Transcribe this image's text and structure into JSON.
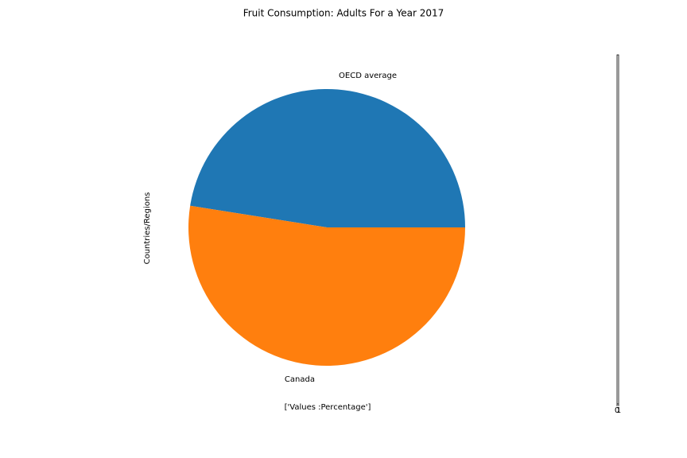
{
  "chart_data": {
    "type": "pie",
    "title": "Fruit Consumption: Adults For a Year 2017",
    "xlabel": "['Values :Percentage']",
    "ylabel": "Countries/Regions",
    "categories": [
      "OECD average",
      "Canada"
    ],
    "values": [
      47.5,
      52.5
    ],
    "colors": [
      "#1f77b4",
      "#ff7f0e"
    ],
    "start_angle": 0,
    "side_axis_ticks": [
      0,
      1
    ]
  }
}
